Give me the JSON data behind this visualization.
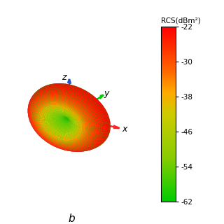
{
  "title_label": "b",
  "colorbar_label": "RCS(dBm²)",
  "colorbar_ticks": [
    -62,
    -54,
    -46,
    -38,
    -30,
    -22
  ],
  "vmin": -62,
  "vmax": -22,
  "axis_x_color": "#ff2222",
  "axis_y_color": "#00cc00",
  "axis_z_color": "#2255cc",
  "axis_x_label": "x",
  "axis_y_label": "y",
  "axis_z_label": "z",
  "figsize": [
    3.2,
    3.2
  ],
  "dpi": 100,
  "background_color": "#ffffff",
  "elev": 22,
  "azim": -60
}
